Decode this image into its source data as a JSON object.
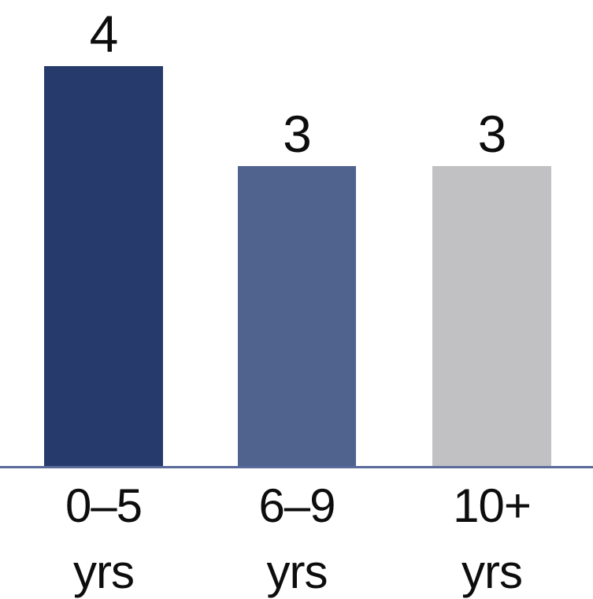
{
  "chart_data": {
    "type": "bar",
    "title": "",
    "xlabel": "",
    "ylabel": "",
    "ylim": [
      0,
      4
    ],
    "grid": false,
    "legend": false,
    "categories": [
      {
        "line1": "0–5",
        "line2": "yrs"
      },
      {
        "line1": "6–9",
        "line2": "yrs"
      },
      {
        "line1": "10+",
        "line2": "yrs"
      }
    ],
    "values": [
      4,
      3,
      3
    ],
    "data_labels": [
      "4",
      "3",
      "3"
    ],
    "colors": [
      "#263a6c",
      "#50628e",
      "#c1c1c3"
    ],
    "axis_line_color": "#5b6b99",
    "text_color": "#0d0d0d"
  }
}
